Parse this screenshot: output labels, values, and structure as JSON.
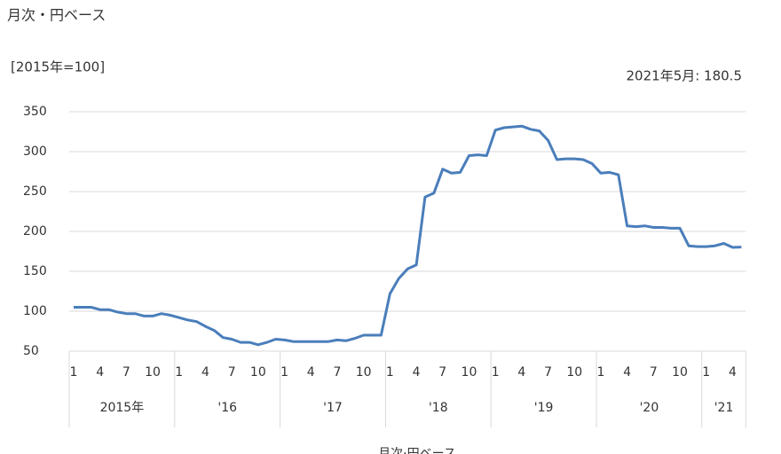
{
  "chart_data": {
    "type": "line",
    "title": "月次・円ベース",
    "y_label": "[2015年=100]",
    "annotation": "2021年5月: 180.5",
    "x_label": "月次·円ベース",
    "categories": [
      "1",
      null,
      null,
      "4",
      null,
      null,
      "7",
      null,
      null,
      "10",
      null,
      null,
      "1",
      null,
      null,
      "4",
      null,
      null,
      "7",
      null,
      null,
      "10",
      null,
      null,
      "1",
      null,
      null,
      "4",
      null,
      null,
      "7",
      null,
      null,
      "10",
      null,
      null,
      "1",
      null,
      null,
      "4",
      null,
      null,
      "7",
      null,
      null,
      "10",
      null,
      null,
      "1",
      null,
      null,
      "4",
      null,
      null,
      "7",
      null,
      null,
      "10",
      null,
      null,
      "1",
      null,
      null,
      "4",
      null,
      null,
      "7",
      null,
      null,
      "10",
      null,
      null,
      "1",
      null,
      null,
      "4",
      null
    ],
    "years": [
      "2015年",
      "'16",
      "'17",
      "'18",
      "'19",
      "'20",
      "'21"
    ],
    "series": [
      {
        "color": "#4a7ebb",
        "values": [
          105,
          105,
          105,
          102,
          102,
          99,
          97,
          97,
          94,
          94,
          97,
          95,
          92,
          89,
          87,
          81,
          76,
          67,
          65,
          61,
          61,
          58,
          61,
          65,
          64,
          62,
          62,
          62,
          62,
          62,
          64,
          63,
          66,
          70,
          70,
          70,
          122,
          141,
          153,
          158,
          243,
          248,
          278,
          273,
          274,
          295,
          296,
          295,
          327,
          330,
          331,
          332,
          328,
          326,
          314,
          290,
          291,
          291,
          290,
          285,
          273,
          274,
          271,
          207,
          206,
          207,
          205,
          205,
          204,
          204,
          182,
          181,
          181,
          182,
          185,
          180,
          180.5
        ]
      }
    ],
    "ylim": [
      50,
      350
    ],
    "yticks": [
      50,
      100,
      150,
      200,
      250,
      300,
      350
    ],
    "grid": true
  }
}
